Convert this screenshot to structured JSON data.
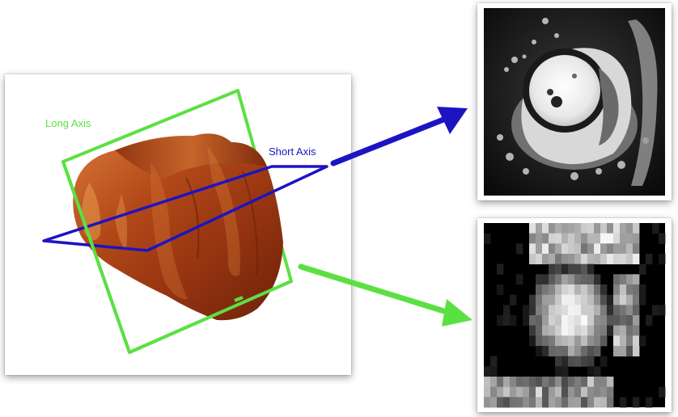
{
  "labels": {
    "long_axis": "Long Axis",
    "short_axis": "Short Axis"
  },
  "colors": {
    "long_axis": "#5be043",
    "short_axis": "#1c14c2",
    "heart_dark": "#7a2a0e",
    "heart_mid": "#b44a1c",
    "heart_light": "#e0823a"
  },
  "images": {
    "short_axis_slice": "short-axis MRI slice (cardiac cross-section)",
    "long_axis_slice": "long-axis MRI slice (low-resolution reconstruction)"
  }
}
